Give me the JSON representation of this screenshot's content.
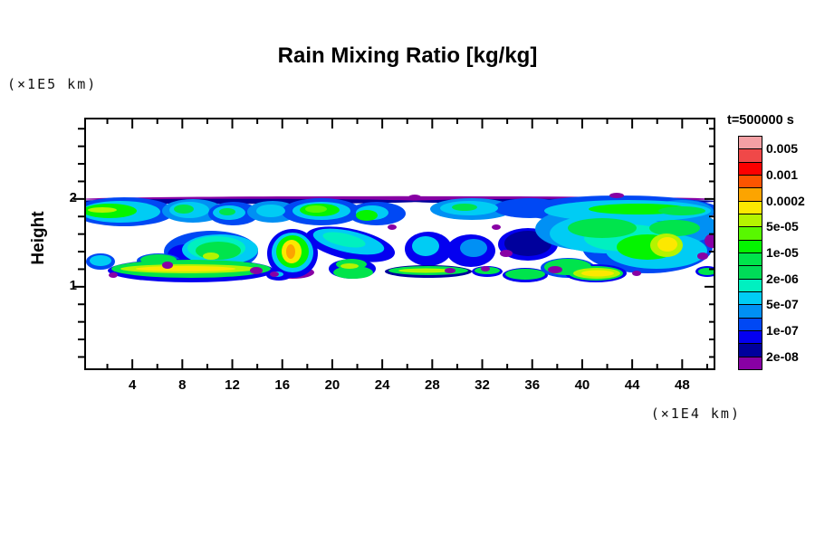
{
  "title": "Rain Mixing Ratio [kg/kg]",
  "annotations": {
    "time_label": "t=500000 s",
    "y_unit_label": "(×1E5 km)",
    "x_unit_label": "(×1E4 km)",
    "y_axis_title": "Height"
  },
  "chart_data": {
    "type": "filled-contour",
    "title": "Rain Mixing Ratio [kg/kg]",
    "time_annotation": "t=500000 s",
    "xlabel": "(×1E4 km)",
    "ylabel": "Height (×1E5 km)",
    "xlim": [
      0.15,
      50.9
    ],
    "ylim": [
      0.05,
      2.93
    ],
    "grid": false,
    "x_major_ticks": [
      4,
      8,
      12,
      16,
      20,
      24,
      28,
      32,
      36,
      40,
      44,
      48
    ],
    "x_minor_ticks": [
      2,
      6,
      10,
      14,
      18,
      22,
      26,
      30,
      34,
      38,
      42,
      46,
      50
    ],
    "y_major_ticks": [
      1,
      2
    ],
    "y_minor_ticks": [
      0.2,
      0.4,
      0.6,
      0.8,
      1.2,
      1.4,
      1.6,
      1.8,
      2.2,
      2.4,
      2.6,
      2.8
    ],
    "contour_levels": [
      2e-08,
      5e-08,
      1e-07,
      2e-07,
      5e-07,
      1e-06,
      2e-06,
      5e-06,
      1e-05,
      2e-05,
      5e-05,
      0.0001,
      0.0002,
      0.0005,
      0.001,
      0.002,
      0.005
    ],
    "legend_labels": [
      "0.005",
      "0.001",
      "0.0002",
      "5e-05",
      "1e-05",
      "2e-06",
      "5e-07",
      "1e-07",
      "2e-08"
    ],
    "palette_order": "high_to_low",
    "palette": [
      "#f4a0a4",
      "#f04848",
      "#fc0000",
      "#fc5400",
      "#fca400",
      "#fce800",
      "#b4f400",
      "#58f800",
      "#04f400",
      "#00e44c",
      "#00dc58",
      "#00f0c0",
      "#00ccf4",
      "#0090f4",
      "#0048f4",
      "#0400f0",
      "#00009c",
      "#8800a4"
    ],
    "description": "Rain layer: continuous band between height ~1.7-2.0 across all x with purple 2e-08 fringe at height 2; scattered mid-level cells at height ~1.2-1.6 (strongest cell with orange ~2e-04 core near x=17, yellow core near x=44); thin low streaks near height ~1.1 with yellow cores near x=8-15, 25-30, 40-42; dark blue pocket near x=34; purple speck near x=50 height 1.4.",
    "field_blobs": [
      [
        347,
        90,
        349,
        3.2,
        0,
        17
      ],
      [
        180,
        92.5,
        190,
        2.8,
        0,
        16
      ],
      [
        530,
        92.5,
        170,
        2.8,
        0,
        16
      ],
      [
        44,
        104,
        56,
        16,
        0,
        14
      ],
      [
        120,
        103,
        34,
        13,
        0,
        13
      ],
      [
        165,
        106,
        28,
        13,
        0,
        14
      ],
      [
        208,
        104,
        28,
        12,
        0,
        13
      ],
      [
        262,
        104,
        44,
        15,
        0,
        14
      ],
      [
        323,
        106,
        32,
        13,
        0,
        14
      ],
      [
        428,
        101,
        46,
        12,
        0,
        13
      ],
      [
        492,
        100,
        40,
        11,
        0,
        14
      ],
      [
        592,
        102,
        110,
        16,
        0,
        14
      ],
      [
        660,
        104,
        35,
        13,
        0,
        13
      ],
      [
        540,
        110,
        28,
        15,
        0,
        13
      ],
      [
        140,
        148,
        52,
        23,
        0,
        14
      ],
      [
        112,
        152,
        20,
        12,
        0,
        15
      ],
      [
        230,
        171,
        24,
        7,
        0,
        17
      ],
      [
        230,
        150,
        28,
        27,
        0,
        15
      ],
      [
        294,
        140,
        50,
        17,
        12,
        15
      ],
      [
        380,
        145,
        26,
        19,
        0,
        15
      ],
      [
        427,
        147,
        27,
        18,
        0,
        15
      ],
      [
        490,
        140,
        33,
        18,
        0,
        15
      ],
      [
        490,
        139,
        26,
        14,
        0,
        16
      ],
      [
        560,
        123,
        62,
        24,
        0,
        13
      ],
      [
        622,
        143,
        72,
        29,
        0,
        14
      ],
      [
        655,
        121,
        45,
        18,
        0,
        13
      ],
      [
        18,
        159,
        16,
        9,
        0,
        14
      ],
      [
        82,
        158,
        24,
        8,
        0,
        14
      ],
      [
        118,
        169,
        92,
        13,
        0,
        15
      ],
      [
        215,
        174,
        14,
        6,
        0,
        15
      ],
      [
        296,
        167,
        26,
        11,
        0,
        15
      ],
      [
        380,
        170,
        48,
        7,
        0,
        16
      ],
      [
        445,
        170,
        17,
        6,
        0,
        15
      ],
      [
        487,
        174,
        25,
        8,
        0,
        15
      ],
      [
        534,
        166,
        30,
        11,
        0,
        14
      ],
      [
        565,
        172,
        34,
        10,
        0,
        15
      ],
      [
        688,
        170,
        13,
        6,
        0,
        15
      ],
      [
        40,
        104,
        44,
        12,
        0,
        12
      ],
      [
        116,
        102,
        22,
        9,
        0,
        12
      ],
      [
        160,
        105,
        18,
        8,
        0,
        12
      ],
      [
        206,
        103,
        16,
        7,
        0,
        12
      ],
      [
        262,
        103,
        32,
        10,
        0,
        12
      ],
      [
        318,
        105,
        18,
        8,
        0,
        12
      ],
      [
        425,
        100,
        32,
        8,
        0,
        12
      ],
      [
        600,
        103,
        92,
        12,
        0,
        12
      ],
      [
        150,
        146,
        42,
        17,
        0,
        12
      ],
      [
        146,
        144,
        32,
        13,
        0,
        11
      ],
      [
        230,
        149,
        23,
        22,
        0,
        12
      ],
      [
        292,
        137,
        40,
        12,
        12,
        12
      ],
      [
        377,
        142,
        15,
        11,
        0,
        12
      ],
      [
        430,
        144,
        15,
        10,
        0,
        13
      ],
      [
        580,
        128,
        66,
        22,
        0,
        12
      ],
      [
        632,
        147,
        56,
        20,
        0,
        12
      ],
      [
        600,
        133,
        48,
        15,
        0,
        11
      ],
      [
        18,
        158,
        12,
        6,
        0,
        12
      ],
      [
        213,
        173,
        7,
        3,
        0,
        12
      ],
      [
        28,
        103,
        30,
        8,
        0,
        8
      ],
      [
        110,
        101,
        11,
        5,
        0,
        9
      ],
      [
        158,
        104,
        9,
        4,
        0,
        9
      ],
      [
        260,
        102,
        22,
        7,
        0,
        8
      ],
      [
        256,
        101,
        12,
        4,
        0,
        7
      ],
      [
        312,
        108,
        12,
        6,
        0,
        8
      ],
      [
        420,
        99,
        14,
        4,
        0,
        9
      ],
      [
        612,
        101,
        55,
        6,
        0,
        8
      ],
      [
        660,
        103,
        26,
        5,
        0,
        9
      ],
      [
        148,
        147,
        25,
        10,
        0,
        9
      ],
      [
        230,
        148,
        18,
        18,
        0,
        8
      ],
      [
        287,
        135,
        24,
        7,
        12,
        11
      ],
      [
        572,
        122,
        38,
        11,
        0,
        9
      ],
      [
        622,
        143,
        34,
        14,
        0,
        8
      ],
      [
        652,
        122,
        28,
        9,
        0,
        9
      ],
      [
        82,
        157,
        20,
        6,
        0,
        9
      ],
      [
        118,
        167,
        88,
        10,
        0,
        9
      ],
      [
        295,
        162,
        17,
        6,
        0,
        9
      ],
      [
        297,
        171,
        22,
        7,
        0,
        9
      ],
      [
        380,
        169,
        44,
        5,
        0,
        9
      ],
      [
        445,
        169,
        14,
        4,
        0,
        9
      ],
      [
        487,
        173,
        22,
        6,
        0,
        9
      ],
      [
        534,
        165,
        26,
        9,
        0,
        9
      ],
      [
        565,
        172,
        30,
        8,
        0,
        9
      ],
      [
        688,
        170,
        10,
        4,
        0,
        9
      ],
      [
        20,
        102,
        16,
        3,
        0,
        6
      ],
      [
        140,
        153,
        9,
        4,
        0,
        6
      ],
      [
        229,
        148,
        11,
        13,
        0,
        5
      ],
      [
        228,
        148,
        5,
        8,
        0,
        4
      ],
      [
        643,
        141,
        18,
        13,
        0,
        6
      ],
      [
        644,
        140,
        11,
        8,
        0,
        5
      ],
      [
        115,
        167,
        75,
        5,
        0,
        6
      ],
      [
        112,
        167,
        55,
        3,
        0,
        5
      ],
      [
        293,
        164,
        10,
        3,
        0,
        6
      ],
      [
        377,
        169,
        30,
        2.5,
        0,
        6
      ],
      [
        566,
        172,
        26,
        6,
        0,
        6
      ],
      [
        567,
        172,
        18,
        3.5,
        0,
        5
      ],
      [
        92,
        163,
        6,
        4,
        0,
        17
      ],
      [
        190,
        169,
        7,
        4,
        0,
        17
      ],
      [
        404,
        169,
        6,
        3,
        0,
        17
      ],
      [
        443,
        167,
        5,
        3,
        0,
        17
      ],
      [
        466,
        150,
        7,
        4,
        0,
        17
      ],
      [
        520,
        168,
        8,
        4,
        0,
        17
      ],
      [
        683,
        153,
        6,
        4,
        0,
        17
      ],
      [
        694,
        136,
        9,
        8,
        0,
        17
      ],
      [
        32,
        174,
        5,
        3,
        0,
        17
      ],
      [
        210,
        173,
        5,
        3,
        0,
        17
      ],
      [
        610,
        172,
        5,
        3,
        0,
        17
      ],
      [
        340,
        121,
        5,
        3,
        0,
        17
      ],
      [
        455,
        121,
        5,
        3,
        0,
        17
      ],
      [
        365,
        88,
        7,
        3,
        0,
        17
      ],
      [
        588,
        86,
        8,
        3,
        0,
        17
      ]
    ]
  }
}
